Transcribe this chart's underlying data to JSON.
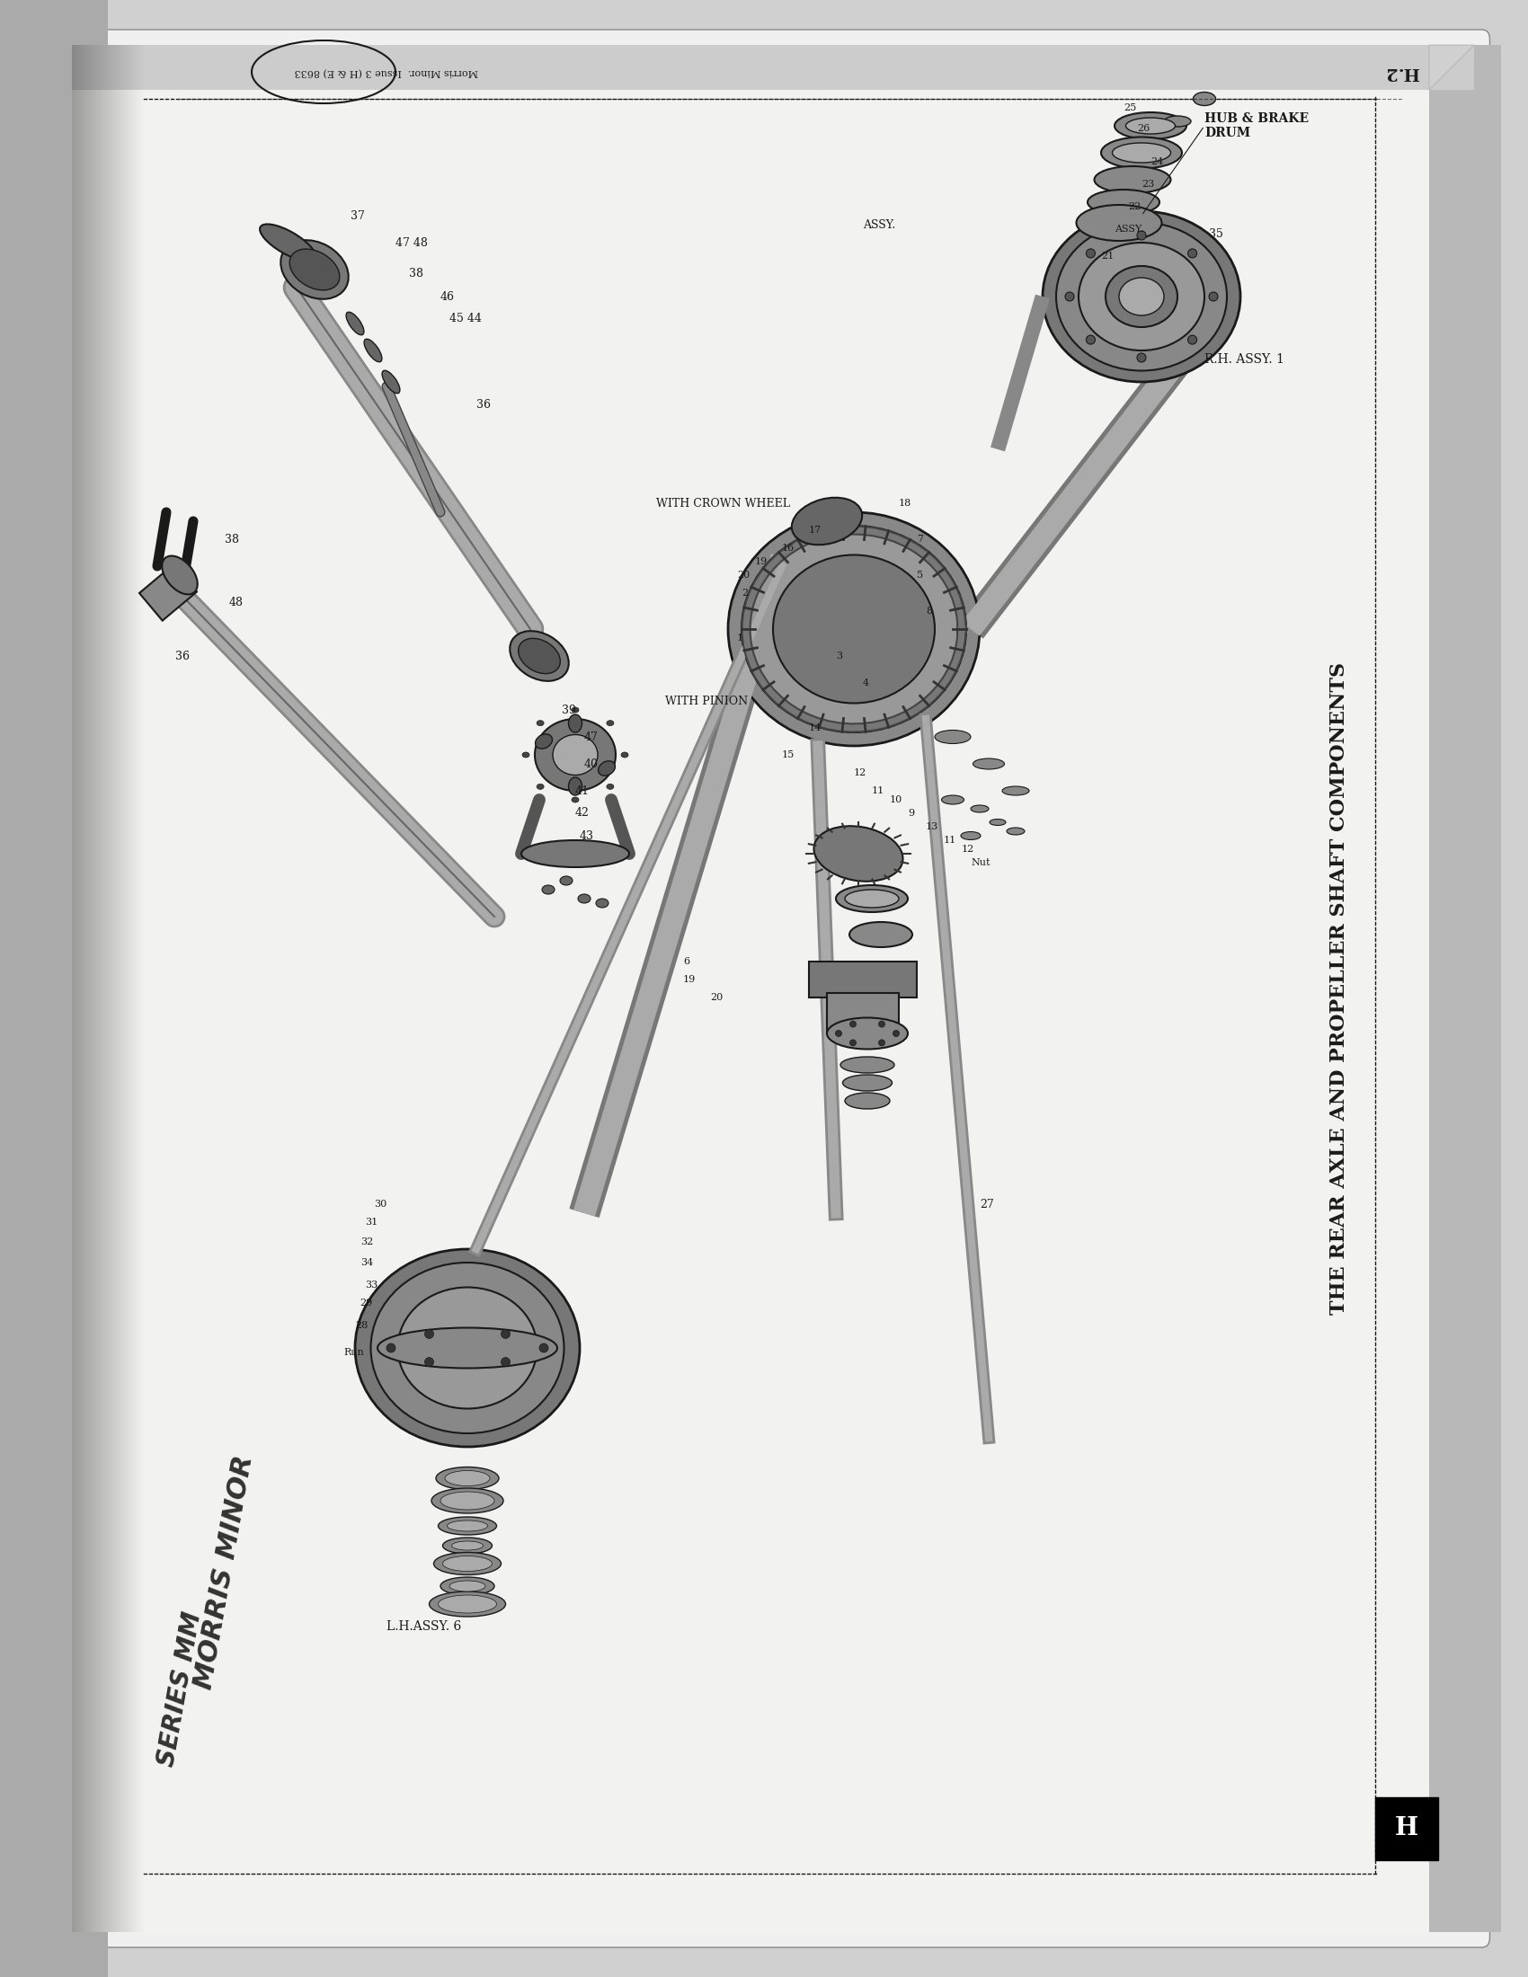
{
  "page_bg": "#d0d0d0",
  "paper_bg": "#e8e8e8",
  "paper_white": "#f0f0f0",
  "title_main": "THE REAR AXLE AND PROPELLER SHAFT COMPONENTS",
  "page_num_top": "H.2",
  "page_num_bottom": "H",
  "header_text": "Morris Minor.  Issue 3 (H & E) 8633",
  "handwriting_1": "MORRIS MINOR",
  "handwriting_2": "SERIES MM",
  "label_hub_brake": "HUB & BRAKE\nDRUM",
  "label_rh_assy": "R.H. ASSY. 1",
  "label_with_crown": "WITH CROWN WHEEL",
  "label_with_pinion": "WITH PINION",
  "label_lh_assy": "L.H.ASSY. 6",
  "label_assy": "ASSY.",
  "ink_color": "#1a1a1a",
  "diagram_color": "#2a2a2a"
}
